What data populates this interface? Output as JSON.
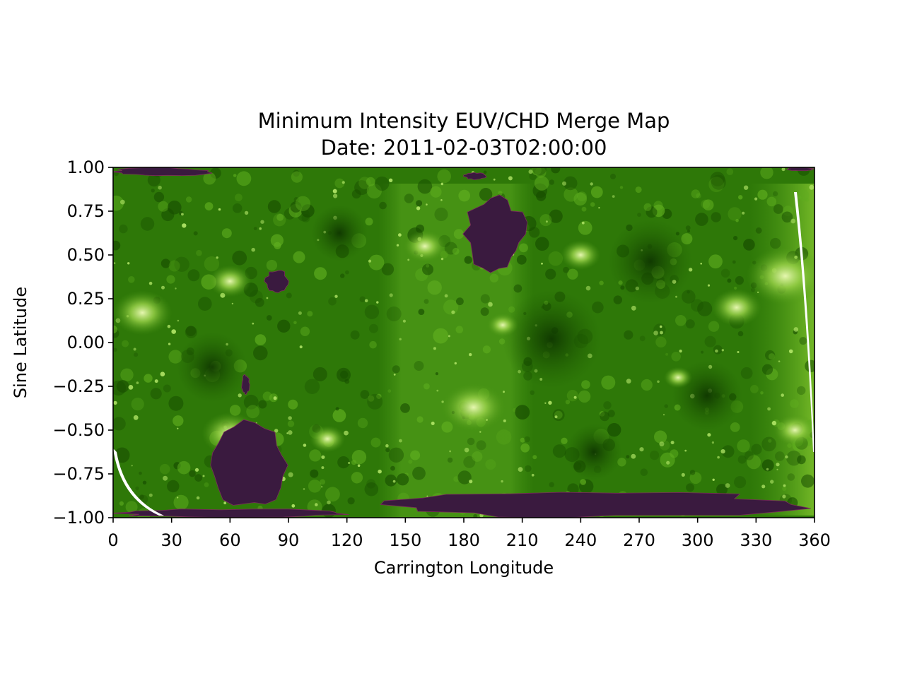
{
  "title": {
    "line1": "Minimum Intensity EUV/CHD Merge Map",
    "line2": "Date: 2011-02-03T02:00:00"
  },
  "axes": {
    "xlabel": "Carrington Longitude",
    "ylabel": "Sine Latitude",
    "xlim": [
      0,
      360
    ],
    "ylim": [
      -1.0,
      1.0
    ],
    "xticks": [
      0,
      30,
      60,
      90,
      120,
      150,
      180,
      210,
      240,
      270,
      300,
      330,
      360
    ],
    "yticks": [
      1.0,
      0.75,
      0.5,
      0.25,
      0.0,
      -0.25,
      -0.5,
      -0.75,
      -1.0
    ],
    "xtick_labels": [
      "0",
      "30",
      "60",
      "90",
      "120",
      "150",
      "180",
      "210",
      "240",
      "270",
      "300",
      "330",
      "360"
    ],
    "ytick_labels": [
      "1.00",
      "0.75",
      "0.50",
      "0.25",
      "0.00",
      "−0.25",
      "−0.50",
      "−0.75",
      "−1.00"
    ]
  },
  "map": {
    "type": "heatmap",
    "background_color": "#2f7a05",
    "coronal_hole_color": "#3a1a3f",
    "bright_region_color": "#b8e878",
    "coronal_holes": [
      {
        "name": "north-polar-left",
        "lon": [
          0,
          50
        ],
        "lat": [
          0.95,
          1.0
        ]
      },
      {
        "name": "north-polar-right",
        "lon": [
          346,
          360
        ],
        "lat": [
          0.98,
          1.0
        ]
      },
      {
        "name": "north-central-top",
        "lon": [
          180,
          192
        ],
        "lat": [
          0.93,
          0.97
        ]
      },
      {
        "name": "north-mid",
        "lon": [
          180,
          212
        ],
        "lat": [
          0.4,
          0.84
        ]
      },
      {
        "name": "north-small",
        "lon": [
          78,
          90
        ],
        "lat": [
          0.28,
          0.42
        ]
      },
      {
        "name": "south-west-stalk",
        "lon": [
          66,
          70
        ],
        "lat": [
          -0.3,
          -0.18
        ]
      },
      {
        "name": "south-west",
        "lon": [
          50,
          90
        ],
        "lat": [
          -0.95,
          -0.45
        ]
      },
      {
        "name": "south-polar-left",
        "lon": [
          0,
          125
        ],
        "lat": [
          -1.0,
          -0.95
        ]
      },
      {
        "name": "south-polar-mid",
        "lon": [
          135,
          355
        ],
        "lat": [
          -1.0,
          -0.85
        ]
      }
    ]
  }
}
